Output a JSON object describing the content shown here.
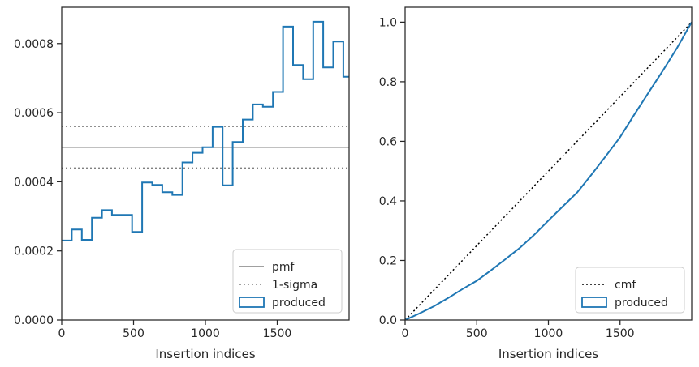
{
  "chart_data": [
    {
      "type": "step-histogram",
      "xlabel": "Insertion indices",
      "ylabel": "",
      "xlim": [
        0,
        2000
      ],
      "ylim": [
        0,
        0.000905
      ],
      "x_ticks": [
        0,
        500,
        1000,
        1500
      ],
      "x_tick_labels": [
        "0",
        "500",
        "1000",
        "1500"
      ],
      "y_ticks": [
        0,
        0.0002,
        0.0004,
        0.0006,
        0.0008
      ],
      "y_tick_labels": [
        "0.0000",
        "0.0002",
        "0.0004",
        "0.0006",
        "0.0008"
      ],
      "reference_lines": [
        {
          "name": "pmf",
          "value": 0.0005,
          "style": "solid",
          "color": "#808080"
        },
        {
          "name": "1-sigma",
          "value": 0.00056,
          "style": "dotted",
          "color": "#808080"
        },
        {
          "name": "1-sigma",
          "value": 0.00044,
          "style": "dotted",
          "color": "#808080"
        }
      ],
      "bin_edges": [
        0,
        70,
        140,
        210,
        280,
        350,
        420,
        490,
        560,
        630,
        700,
        770,
        840,
        910,
        980,
        1050,
        1120,
        1190,
        1260,
        1330,
        1400,
        1470,
        1540,
        1610,
        1680,
        1750,
        1820,
        1890,
        1960,
        2000
      ],
      "series": [
        {
          "name": "produced",
          "color": "#1f77b4",
          "values": [
            0.00023,
            0.000262,
            0.000232,
            0.000296,
            0.000318,
            0.000304,
            0.000304,
            0.000255,
            0.000398,
            0.000391,
            0.00037,
            0.000362,
            0.000456,
            0.000484,
            0.0005,
            0.000559,
            0.00039,
            0.000515,
            0.00058,
            0.000624,
            0.000617,
            0.00066,
            0.000849,
            0.000738,
            0.000697,
            0.000863,
            0.000731,
            0.000806,
            0.000704
          ]
        }
      ],
      "legend": {
        "location": "lower right",
        "entries": [
          {
            "label": "pmf",
            "kind": "line-solid",
            "color": "#808080"
          },
          {
            "label": "1-sigma",
            "kind": "line-dotted",
            "color": "#808080"
          },
          {
            "label": "produced",
            "kind": "patch",
            "color": "#1f77b4"
          }
        ]
      },
      "grid": false
    },
    {
      "type": "line",
      "xlabel": "Insertion indices",
      "ylabel": "",
      "xlim": [
        0,
        2000
      ],
      "ylim": [
        0,
        1.05
      ],
      "x_ticks": [
        0,
        500,
        1000,
        1500
      ],
      "x_tick_labels": [
        "0",
        "500",
        "1000",
        "1500"
      ],
      "y_ticks": [
        0,
        0.2,
        0.4,
        0.6,
        0.8,
        1.0
      ],
      "y_tick_labels": [
        "0.0",
        "0.2",
        "0.4",
        "0.6",
        "0.8",
        "1.0"
      ],
      "series": [
        {
          "name": "cmf",
          "style": "dotted",
          "color": "#000000",
          "x": [
            0,
            2000
          ],
          "y": [
            0,
            1.0
          ]
        },
        {
          "name": "produced",
          "style": "solid",
          "color": "#1f77b4",
          "x": [
            0,
            100,
            200,
            300,
            400,
            500,
            600,
            700,
            800,
            900,
            1000,
            1100,
            1200,
            1300,
            1400,
            1500,
            1600,
            1700,
            1800,
            1900,
            2000
          ],
          "y": [
            0,
            0.022,
            0.046,
            0.074,
            0.104,
            0.132,
            0.167,
            0.204,
            0.242,
            0.286,
            0.334,
            0.381,
            0.428,
            0.488,
            0.55,
            0.614,
            0.69,
            0.764,
            0.838,
            0.915,
            1.0
          ]
        }
      ],
      "legend": {
        "location": "lower right",
        "entries": [
          {
            "label": "cmf",
            "kind": "line-dotted",
            "color": "#000000"
          },
          {
            "label": "produced",
            "kind": "patch",
            "color": "#1f77b4"
          }
        ]
      },
      "grid": false
    }
  ]
}
